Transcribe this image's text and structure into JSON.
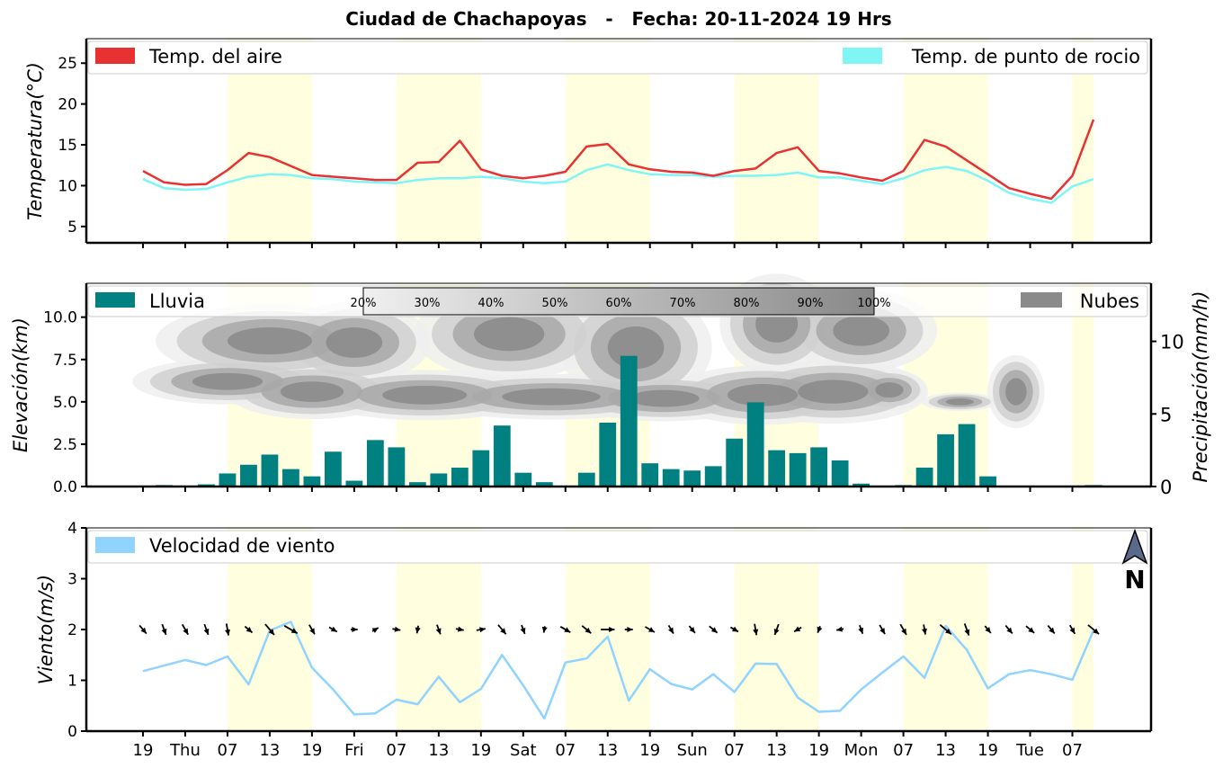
{
  "title": "Ciudad de Chachapoyas   -   Fecha: 20-11-2024 19 Hrs",
  "colors": {
    "day_band": "#ffffe0",
    "temp_air": "#e83232",
    "temp_dew": "#7ff5f5",
    "rain": "#008080",
    "cloud": "#8a8a8a",
    "wind": "#8fd3fe",
    "north_arrow": "#5a6a8a"
  },
  "time_axis": {
    "start_hour": 0,
    "end_hour": 156,
    "labels": [
      "19",
      "Thu",
      "07",
      "13",
      "19",
      "Fri",
      "07",
      "13",
      "19",
      "Sat",
      "07",
      "13",
      "19",
      "Sun",
      "07",
      "13",
      "19",
      "Mon",
      "07",
      "13",
      "19",
      "Tue",
      "07"
    ],
    "day_bands": [
      [
        12,
        24
      ],
      [
        36,
        48
      ],
      [
        60,
        72
      ],
      [
        84,
        96
      ],
      [
        108,
        120
      ],
      [
        132,
        135
      ]
    ]
  },
  "chart_data": [
    {
      "type": "line",
      "name": "temperature",
      "ylabel": "Temperatura(°C)",
      "ylim": [
        3,
        28
      ],
      "yticks": [
        5,
        10,
        15,
        20,
        25
      ],
      "legend_placement": "top",
      "series": [
        {
          "name": "Temp. del aire",
          "color": "#e83232",
          "values": [
            11.8,
            10.4,
            10.1,
            10.2,
            11.9,
            14.0,
            13.5,
            12.4,
            11.3,
            11.1,
            10.9,
            10.7,
            10.7,
            12.8,
            12.9,
            15.5,
            12.0,
            11.2,
            10.9,
            11.2,
            11.7,
            14.8,
            15.1,
            12.6,
            12.0,
            11.7,
            11.6,
            11.2,
            11.8,
            12.1,
            14.0,
            14.7,
            11.8,
            11.5,
            11.0,
            10.6,
            11.8,
            15.6,
            14.8,
            13.1,
            11.4,
            9.7,
            9.0,
            8.4,
            11.2,
            18.1
          ]
        },
        {
          "name": "Temp. de punto de rocio",
          "color": "#7ff5f5",
          "values": [
            10.8,
            9.7,
            9.5,
            9.6,
            10.4,
            11.1,
            11.4,
            11.3,
            10.9,
            10.8,
            10.5,
            10.4,
            10.3,
            10.7,
            10.9,
            10.9,
            11.1,
            10.9,
            10.5,
            10.3,
            10.5,
            11.9,
            12.6,
            11.9,
            11.4,
            11.3,
            11.3,
            11.1,
            11.2,
            11.2,
            11.3,
            11.6,
            11.0,
            11.0,
            10.6,
            10.2,
            10.9,
            11.9,
            12.3,
            11.8,
            10.6,
            9.1,
            8.4,
            7.9,
            9.9,
            10.8
          ]
        }
      ]
    },
    {
      "type": "bar",
      "name": "precipitation_clouds",
      "ylabel": "Elevación(km)",
      "ylabel_right": "Precipitación(mm/h)",
      "ylim": [
        0,
        12
      ],
      "yticks": [
        "0.0",
        "2.5",
        "5.0",
        "7.5",
        "10.0"
      ],
      "ylim_right": [
        0,
        14
      ],
      "yticks_right": [
        0,
        5,
        10
      ],
      "series": [
        {
          "name": "Lluvia",
          "color": "#008080",
          "values": [
            0.0,
            0.1,
            0.05,
            0.15,
            0.9,
            1.5,
            2.2,
            1.2,
            0.7,
            2.4,
            0.4,
            3.2,
            2.7,
            0.3,
            0.9,
            1.3,
            2.5,
            4.2,
            0.95,
            0.3,
            0.0,
            0.95,
            4.4,
            9.0,
            1.6,
            1.2,
            1.1,
            1.4,
            3.3,
            5.8,
            2.5,
            2.3,
            2.7,
            1.8,
            0.2,
            0.0,
            0.1,
            1.3,
            3.6,
            4.3,
            0.7,
            0.0,
            0.0,
            0.0,
            0.0,
            0.1
          ]
        }
      ],
      "cloud_legend": "Nubes",
      "cloud_cover_scale": [
        "20%",
        "30%",
        "40%",
        "50%",
        "60%",
        "70%",
        "80%",
        "90%",
        "100%"
      ]
    },
    {
      "type": "line",
      "name": "wind",
      "ylabel": "Viento(m/s)",
      "ylim": [
        0,
        4
      ],
      "yticks": [
        0,
        1,
        2,
        3,
        4
      ],
      "north_label": "N",
      "series": [
        {
          "name": "Velocidad de viento",
          "color": "#8fd3fe",
          "values": [
            1.18,
            1.29,
            1.4,
            1.3,
            1.47,
            0.92,
            1.98,
            2.15,
            1.25,
            0.82,
            0.33,
            0.35,
            0.62,
            0.53,
            1.07,
            0.57,
            0.83,
            1.5,
            0.9,
            0.25,
            1.35,
            1.43,
            1.86,
            0.6,
            1.22,
            0.93,
            0.82,
            1.12,
            0.77,
            1.33,
            1.32,
            0.66,
            0.38,
            0.4,
            0.82,
            1.15,
            1.47,
            1.05,
            2.07,
            1.6,
            0.84,
            1.12,
            1.2,
            1.12,
            1.01,
            1.98
          ]
        }
      ],
      "wind_direction_deg": [
        320,
        340,
        330,
        340,
        350,
        310,
        320,
        300,
        330,
        300,
        270,
        240,
        280,
        10,
        340,
        280,
        260,
        320,
        340,
        10,
        300,
        310,
        270,
        270,
        300,
        330,
        320,
        310,
        300,
        350,
        20,
        60,
        20,
        80,
        340,
        330,
        330,
        350,
        310,
        340,
        320,
        320,
        310,
        320,
        330,
        310
      ]
    }
  ]
}
